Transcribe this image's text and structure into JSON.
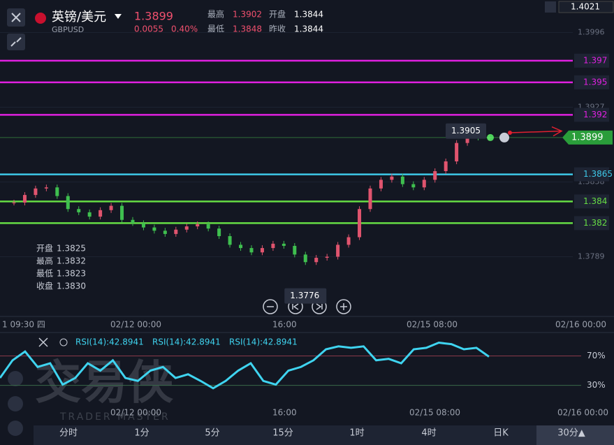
{
  "header": {
    "title": "英镑/美元",
    "symbol": "GBPUSD",
    "price": "1.3899",
    "change": "0.0055",
    "change_pct": "0.40%",
    "stats": [
      {
        "label": "最高",
        "value": "1.3902"
      },
      {
        "label": "最低",
        "value": "1.3848"
      },
      {
        "label": "开盘",
        "value": "1.3844"
      },
      {
        "label": "昨收",
        "value": "1.3844"
      }
    ]
  },
  "ohlc_box": [
    {
      "label": "开盘",
      "value": "1.3825"
    },
    {
      "label": "最高",
      "value": "1.3832"
    },
    {
      "label": "最低",
      "value": "1.3823"
    },
    {
      "label": "收盘",
      "value": "1.3830"
    }
  ],
  "price_chart": {
    "type": "candlestick",
    "ylim": [
      1.3739,
      1.4026
    ],
    "yticks": [
      1.3996,
      1.3927,
      1.3858,
      1.3789
    ],
    "top_label": 1.4021,
    "levels": [
      {
        "value": 1.397,
        "color": "#e020e0"
      },
      {
        "value": 1.395,
        "color": "#e020e0"
      },
      {
        "value": 1.392,
        "color": "#e020e0"
      },
      {
        "value": 1.3865,
        "color": "#3ec8e8"
      },
      {
        "value": 1.384,
        "color": "#66dd44"
      },
      {
        "value": 1.382,
        "color": "#66dd44"
      }
    ],
    "closes": [
      1.3839,
      1.3846,
      1.3852,
      1.3853,
      1.3845,
      1.3833,
      1.383,
      1.3826,
      1.3832,
      1.3836,
      1.3823,
      1.382,
      1.3816,
      1.3813,
      1.381,
      1.3814,
      1.3817,
      1.3819,
      1.3815,
      1.3808,
      1.38,
      1.3797,
      1.3793,
      1.3797,
      1.3801,
      1.3799,
      1.3791,
      1.3784,
      1.3788,
      1.3789,
      1.38,
      1.3807,
      1.3833,
      1.3852,
      1.386,
      1.3863,
      1.3856,
      1.3853,
      1.386,
      1.3868,
      1.3877,
      1.3894,
      1.3901,
      1.3899,
      1.3899
    ],
    "up_color": "#e0546e",
    "down_color": "#3fbf4f",
    "current_price": 1.3899,
    "high_marker": 1.3905,
    "low_marker": 1.3776
  },
  "time_labels": [
    "1 09:30 四",
    "02/12 00:00",
    "16:00",
    "02/15 08:00",
    "02/16 00:00"
  ],
  "rsi_chart": {
    "type": "line",
    "legends": [
      "RSI(14):42.8941",
      "RSI(14):42.8941",
      "RSI(14):42.8941"
    ],
    "color": "#3fd4f0",
    "ylim": [
      -16,
      98
    ],
    "yticks": [
      {
        "value": 70,
        "label": "70%"
      },
      {
        "value": 30,
        "label": "30%"
      }
    ],
    "values": [
      40,
      64,
      76,
      55,
      60,
      31,
      40,
      60,
      50,
      64,
      40,
      36,
      50,
      55,
      40,
      45,
      36,
      26,
      36,
      50,
      60,
      36,
      31,
      50,
      55,
      64,
      79,
      83,
      81,
      83,
      64,
      66,
      60,
      79,
      81,
      88,
      86,
      79,
      81,
      69
    ]
  },
  "rsi_time_labels": [
    "02/12 00:00",
    "16:00",
    "02/15 08:00",
    "02/16 00:00"
  ],
  "tabs": [
    "分时",
    "1分",
    "5分",
    "15分",
    "1时",
    "4时",
    "日K",
    "30分▲"
  ],
  "watermark": {
    "main": "交易侠",
    "sub": "TRADER MASTER"
  }
}
